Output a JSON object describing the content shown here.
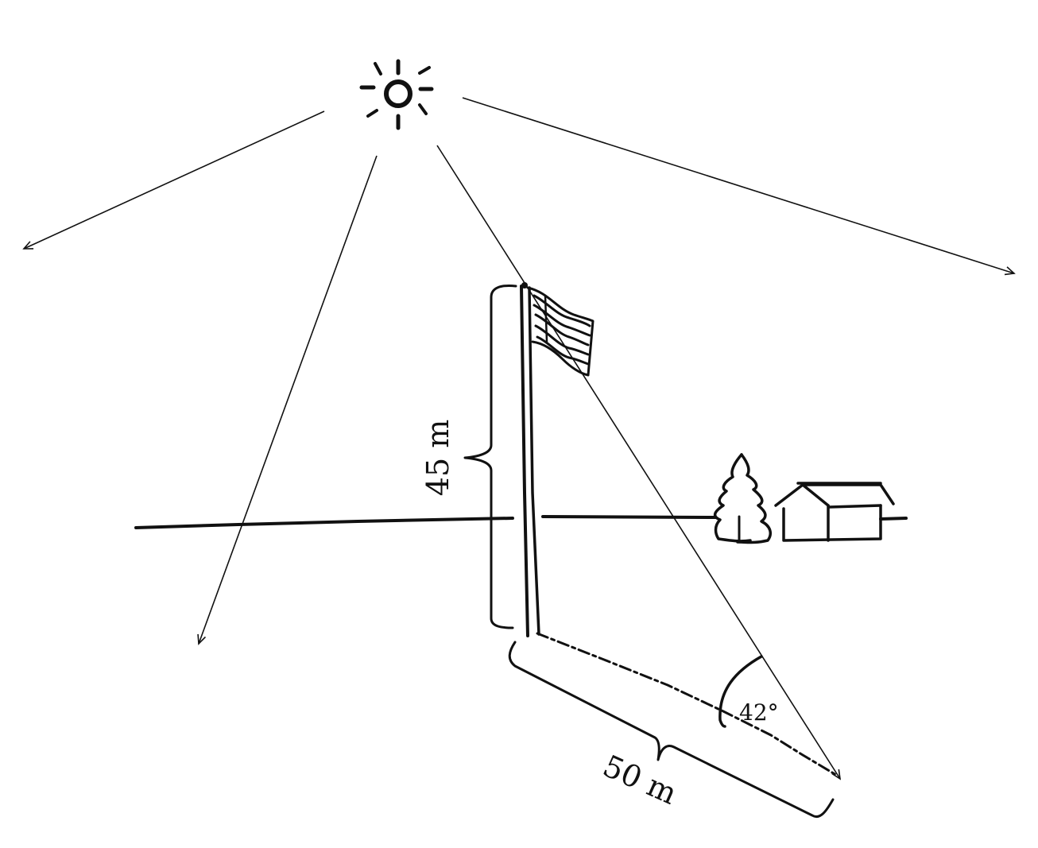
{
  "labels": {
    "height": "45 m",
    "shadow_length": "50 m",
    "sun_angle": "42°"
  }
}
